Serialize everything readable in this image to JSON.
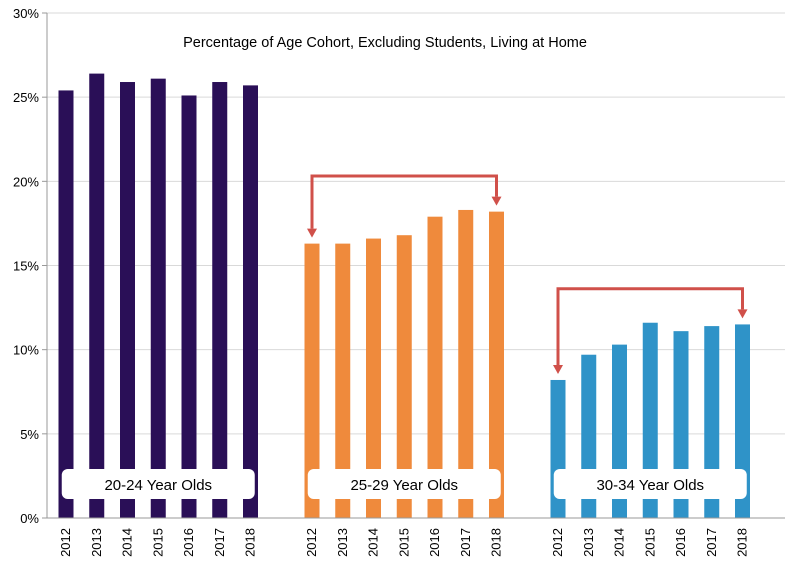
{
  "chart_data": {
    "type": "bar",
    "title": "Percentage of Age Cohort, Excluding Students, Living at Home",
    "ylabel": "",
    "xlabel": "",
    "ylim": [
      0,
      30
    ],
    "yticks": [
      0,
      5,
      10,
      15,
      20,
      25,
      30
    ],
    "ytick_labels": [
      "0%",
      "5%",
      "10%",
      "15%",
      "20%",
      "25%",
      "30%"
    ],
    "grid": true,
    "groups": [
      {
        "name": "20-24 Year Olds",
        "color": "#2a0f57",
        "categories": [
          "2012",
          "2013",
          "2014",
          "2015",
          "2016",
          "2017",
          "2018"
        ],
        "values": [
          25.4,
          26.4,
          25.9,
          26.1,
          25.1,
          25.9,
          25.7
        ]
      },
      {
        "name": "25-29 Year Olds",
        "color": "#ef8a3c",
        "categories": [
          "2012",
          "2013",
          "2014",
          "2015",
          "2016",
          "2017",
          "2018"
        ],
        "values": [
          16.3,
          16.3,
          16.6,
          16.8,
          17.9,
          18.3,
          18.2
        ]
      },
      {
        "name": "30-34 Year Olds",
        "color": "#2f93c8",
        "categories": [
          "2012",
          "2013",
          "2014",
          "2015",
          "2016",
          "2017",
          "2018"
        ],
        "values": [
          8.2,
          9.7,
          10.3,
          11.6,
          11.1,
          11.4,
          11.5
        ]
      }
    ],
    "annotations": [
      {
        "type": "bracket-arrow",
        "group": 1,
        "from": "2012",
        "to": "2018",
        "color": "#d0504a"
      },
      {
        "type": "bracket-arrow",
        "group": 2,
        "from": "2012",
        "to": "2018",
        "color": "#d0504a"
      }
    ]
  }
}
